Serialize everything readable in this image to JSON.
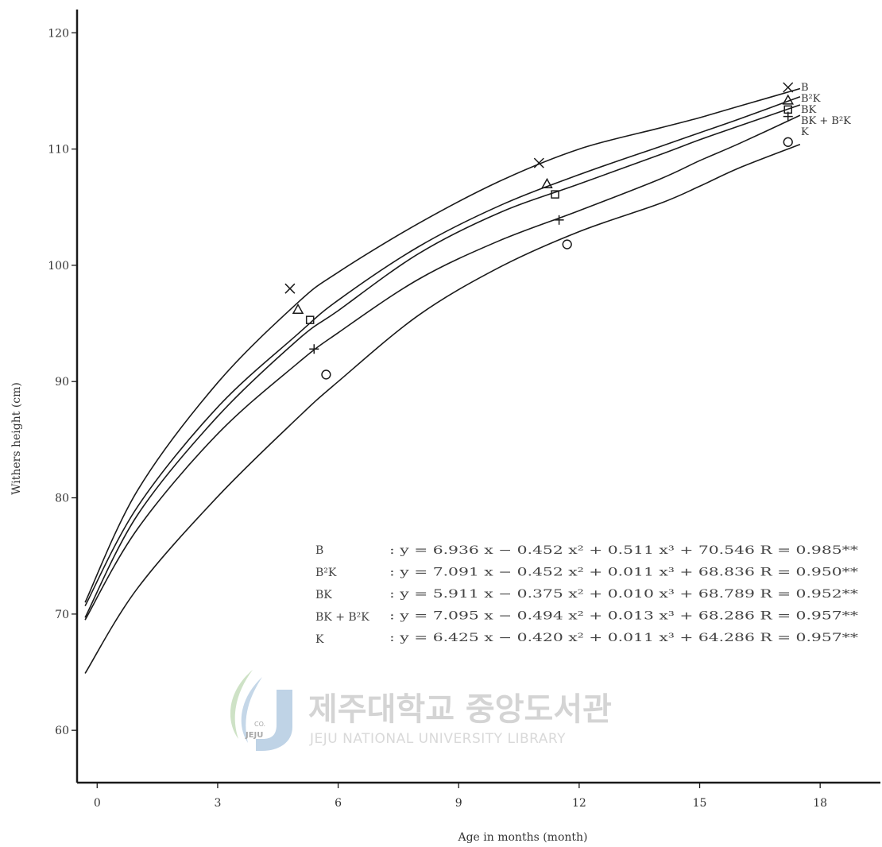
{
  "chart_data": {
    "type": "line",
    "xlabel": "Age in months (month)",
    "ylabel": "Withers height (cm)",
    "xlim": [
      -0.5,
      19.5
    ],
    "ylim": [
      55.5,
      122
    ],
    "xticks": [
      0,
      3,
      6,
      9,
      12,
      15,
      18
    ],
    "xtick_labels": [
      "0",
      "3",
      "6",
      "9",
      "12",
      "15",
      "18"
    ],
    "yticks": [
      60,
      70,
      80,
      90,
      100,
      110,
      120
    ],
    "ytick_labels": [
      "60",
      "70",
      "80",
      "90",
      "100",
      "110",
      "120"
    ],
    "grid": false,
    "legend": "right",
    "series": [
      {
        "name": "B",
        "marker": "x",
        "x": [
          -0.3,
          1,
          3,
          5,
          6,
          8,
          10,
          12,
          14,
          15,
          16,
          17.5
        ],
        "y": [
          71.0,
          80.6,
          89.9,
          96.8,
          99.4,
          103.6,
          107.2,
          110.0,
          111.8,
          112.7,
          113.7,
          115.2
        ],
        "markers": [
          {
            "x": 4.8,
            "y": 98
          },
          {
            "x": 11,
            "y": 108.8
          },
          {
            "x": 17.2,
            "y": 115.3
          }
        ]
      },
      {
        "name": "B²K",
        "marker": "triangle",
        "x": [
          -0.3,
          1,
          3,
          5,
          6,
          8,
          10,
          12,
          14,
          15,
          16,
          17.5
        ],
        "y": [
          70.7,
          79.2,
          87.8,
          94.1,
          97.0,
          101.6,
          105.1,
          107.8,
          110.2,
          111.4,
          112.6,
          114.5
        ],
        "markers": [
          {
            "x": 5,
            "y": 96.2
          },
          {
            "x": 11.2,
            "y": 107
          },
          {
            "x": 17.2,
            "y": 114.2
          }
        ]
      },
      {
        "name": "BK",
        "marker": "square",
        "x": [
          -0.3,
          1,
          3,
          5,
          6,
          8,
          10,
          12,
          14,
          15,
          16,
          17.5
        ],
        "y": [
          69.7,
          78.5,
          87.0,
          93.6,
          96.1,
          101.0,
          104.5,
          107.0,
          109.5,
          110.8,
          112.0,
          113.8
        ],
        "markers": [
          {
            "x": 5.3,
            "y": 95.3
          },
          {
            "x": 11.4,
            "y": 106.1
          },
          {
            "x": 17.2,
            "y": 113.4
          }
        ]
      },
      {
        "name": "BK + B²K",
        "marker": "plus",
        "x": [
          -0.3,
          1,
          3,
          5,
          6,
          8,
          10,
          12,
          14,
          15,
          16,
          17.5
        ],
        "y": [
          69.5,
          77.3,
          85.5,
          91.6,
          94.2,
          98.8,
          102.1,
          104.7,
          107.4,
          109.0,
          110.5,
          112.9
        ],
        "markers": [
          {
            "x": 5.4,
            "y": 92.8
          },
          {
            "x": 11.5,
            "y": 103.9
          },
          {
            "x": 17.2,
            "y": 112.8
          }
        ]
      },
      {
        "name": "K",
        "marker": "circle",
        "x": [
          -0.3,
          1,
          3,
          5,
          6,
          8,
          10,
          12,
          14,
          15,
          16,
          17.5
        ],
        "y": [
          64.9,
          72.2,
          80.1,
          86.9,
          90.0,
          95.7,
          99.8,
          102.9,
          105.3,
          106.8,
          108.4,
          110.4
        ],
        "markers": [
          {
            "x": 5.7,
            "y": 90.6
          },
          {
            "x": 11.7,
            "y": 101.8
          },
          {
            "x": 17.2,
            "y": 110.6
          }
        ]
      }
    ],
    "equations": [
      {
        "name": "B",
        "body": ": y = 6.936 x − 0.452 x² + 0.511 x³ + 70.546   R = 0.985**"
      },
      {
        "name": "B²K",
        "body": ": y = 7.091 x − 0.452 x² + 0.011 x³ + 68.836   R = 0.950**"
      },
      {
        "name": "BK",
        "body": ": y = 5.911 x − 0.375 x² + 0.010 x³ + 68.789   R = 0.952**"
      },
      {
        "name": "BK + B²K",
        "body": ": y = 7.095 x − 0.494 x² + 0.013 x³ + 68.286   R = 0.957**"
      },
      {
        "name": "K",
        "body": ": y = 6.425 x − 0.420 x² + 0.011 x³ + 64.286   R = 0.957**"
      }
    ]
  },
  "watermark": {
    "title": "제주대학교 중앙도서관",
    "subtitle": "JEJU NATIONAL UNIVERSITY LIBRARY",
    "logo_text": "JEJU",
    "logo_small": "CO."
  },
  "colors": {
    "ink": "#1a1a1a",
    "watermark": "#d0d0d0",
    "logo_green": "#c9dfc0",
    "logo_blue": "#bfd3e6"
  }
}
